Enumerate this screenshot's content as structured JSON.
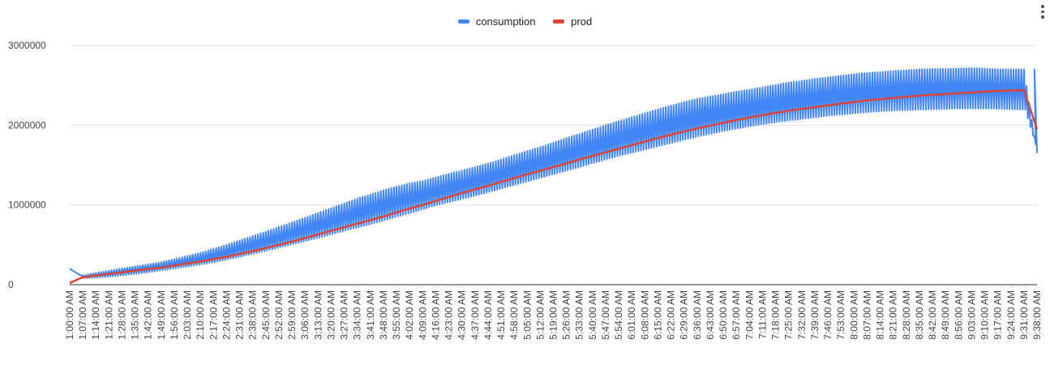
{
  "chart_data": {
    "type": "line",
    "title": "",
    "xlabel": "",
    "ylabel": "",
    "ylim": [
      0,
      3000000
    ],
    "yticks": [
      0,
      1000000,
      2000000,
      3000000
    ],
    "ytick_labels": [
      "0",
      "1000000",
      "2000000",
      "3000000"
    ],
    "xtick_labels": [
      "1:00:00 AM",
      "1:07:00 AM",
      "1:14:00 AM",
      "1:21:00 AM",
      "1:28:00 AM",
      "1:35:00 AM",
      "1:42:00 AM",
      "1:49:00 AM",
      "1:56:00 AM",
      "2:03:00 AM",
      "2:10:00 AM",
      "2:17:00 AM",
      "2:24:00 AM",
      "2:31:00 AM",
      "2:38:00 AM",
      "2:45:00 AM",
      "2:52:00 AM",
      "2:59:00 AM",
      "3:06:00 AM",
      "3:13:00 AM",
      "3:20:00 AM",
      "3:27:00 AM",
      "3:34:00 AM",
      "3:41:00 AM",
      "3:48:00 AM",
      "3:55:00 AM",
      "4:02:00 AM",
      "4:09:00 AM",
      "4:16:00 AM",
      "4:23:00 AM",
      "4:30:00 AM",
      "4:37:00 AM",
      "4:44:00 AM",
      "4:51:00 AM",
      "4:58:00 AM",
      "5:05:00 AM",
      "5:12:00 AM",
      "5:19:00 AM",
      "5:26:00 AM",
      "5:33:00 AM",
      "5:40:00 AM",
      "5:47:00 AM",
      "5:54:00 AM",
      "6:01:00 AM",
      "6:08:00 AM",
      "6:15:00 AM",
      "6:22:00 AM",
      "6:29:00 AM",
      "6:36:00 AM",
      "6:43:00 AM",
      "6:50:00 AM",
      "6:57:00 AM",
      "7:04:00 AM",
      "7:11:00 AM",
      "7:18:00 AM",
      "7:25:00 AM",
      "7:32:00 AM",
      "7:39:00 AM",
      "7:46:00 AM",
      "7:53:00 AM",
      "8:00:00 AM",
      "8:07:00 AM",
      "8:14:00 AM",
      "8:21:00 AM",
      "8:28:00 AM",
      "8:35:00 AM",
      "8:42:00 AM",
      "8:49:00 AM",
      "8:56:00 AM",
      "9:03:00 AM",
      "9:10:00 AM",
      "9:17:00 AM",
      "9:24:00 AM",
      "9:31:00 AM",
      "9:38:00 AM"
    ],
    "grid": true,
    "legend_position": "top",
    "series": [
      {
        "name": "consumption",
        "color": "#4285f4",
        "oscillation": "band",
        "upper_envelope": [
          200000,
          115000,
          150000,
          175000,
          205000,
          230000,
          255000,
          285000,
          320000,
          360000,
          400000,
          450000,
          500000,
          555000,
          610000,
          665000,
          725000,
          780000,
          840000,
          900000,
          960000,
          1020000,
          1080000,
          1130000,
          1185000,
          1230000,
          1270000,
          1300000,
          1345000,
          1390000,
          1430000,
          1475000,
          1520000,
          1570000,
          1625000,
          1675000,
          1725000,
          1780000,
          1840000,
          1890000,
          1945000,
          2000000,
          2050000,
          2100000,
          2150000,
          2200000,
          2245000,
          2290000,
          2330000,
          2360000,
          2390000,
          2420000,
          2445000,
          2475000,
          2505000,
          2535000,
          2555000,
          2580000,
          2600000,
          2620000,
          2640000,
          2655000,
          2665000,
          2680000,
          2690000,
          2700000,
          2705000,
          2705000,
          2710000,
          2715000,
          2710000,
          2700000,
          2700000,
          2700000,
          1650000
        ],
        "lower_envelope": [
          200000,
          82000,
          90000,
          103000,
          118000,
          137000,
          158000,
          182000,
          206000,
          230000,
          256000,
          285000,
          318000,
          355000,
          392000,
          430000,
          470000,
          510000,
          550000,
          592000,
          636000,
          680000,
          720000,
          764000,
          810000,
          856000,
          902000,
          950000,
          1000000,
          1040000,
          1080000,
          1120000,
          1165000,
          1210000,
          1255000,
          1300000,
          1345000,
          1390000,
          1435000,
          1480000,
          1530000,
          1575000,
          1620000,
          1660000,
          1700000,
          1740000,
          1780000,
          1820000,
          1860000,
          1895000,
          1930000,
          1960000,
          1990000,
          2015000,
          2040000,
          2060000,
          2080000,
          2100000,
          2120000,
          2135000,
          2150000,
          2165000,
          2175000,
          2185000,
          2190000,
          2195000,
          2200000,
          2205000,
          2210000,
          2210000,
          2210000,
          2205000,
          2200000,
          2195000,
          1650000
        ]
      },
      {
        "name": "prod",
        "color": "#db4437",
        "values": [
          20000,
          95000,
          115000,
          135000,
          155000,
          175000,
          195000,
          215000,
          240000,
          265000,
          290000,
          320000,
          350000,
          385000,
          420000,
          460000,
          500000,
          540000,
          585000,
          630000,
          675000,
          720000,
          765000,
          810000,
          855000,
          905000,
          955000,
          1000000,
          1050000,
          1100000,
          1150000,
          1195000,
          1240000,
          1290000,
          1335000,
          1385000,
          1430000,
          1475000,
          1520000,
          1570000,
          1615000,
          1660000,
          1705000,
          1750000,
          1795000,
          1840000,
          1880000,
          1920000,
          1960000,
          1995000,
          2030000,
          2065000,
          2095000,
          2125000,
          2155000,
          2180000,
          2205000,
          2225000,
          2250000,
          2270000,
          2290000,
          2310000,
          2325000,
          2340000,
          2355000,
          2370000,
          2380000,
          2390000,
          2400000,
          2410000,
          2420000,
          2430000,
          2435000,
          2440000,
          1950000
        ]
      }
    ]
  }
}
